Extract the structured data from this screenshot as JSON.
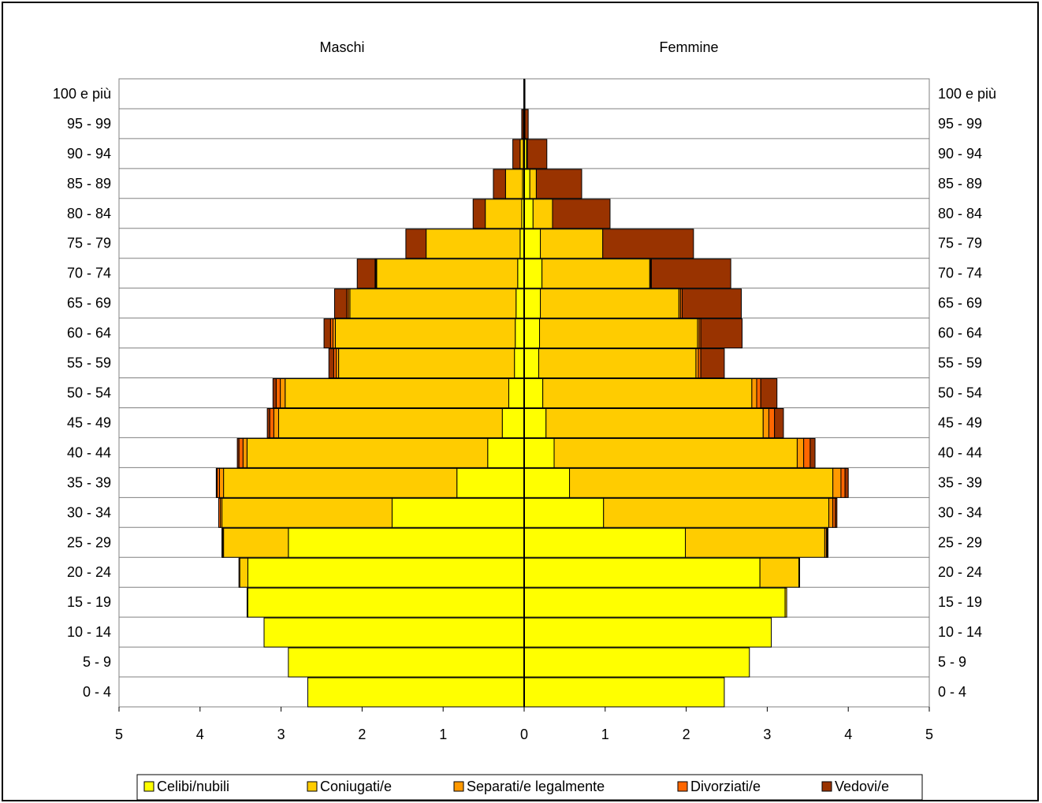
{
  "chart_data": {
    "type": "bar",
    "orientation": "horizontal-population-pyramid",
    "left_title": "Maschi",
    "right_title": "Femmine",
    "xlim": [
      -5,
      5
    ],
    "x_ticks": [
      "5",
      "4",
      "3",
      "2",
      "1",
      "0",
      "1",
      "2",
      "3",
      "4",
      "5"
    ],
    "grid": "horizontal lines between age classes",
    "legend_position": "bottom",
    "categories": [
      "0 - 4",
      "5 - 9",
      "10 - 14",
      "15 - 19",
      "20 - 24",
      "25 - 29",
      "30 - 34",
      "35 - 39",
      "40 - 44",
      "45 - 49",
      "50 - 54",
      "55 - 59",
      "60 - 64",
      "65 - 69",
      "70 - 74",
      "75 - 79",
      "80 - 84",
      "85 - 89",
      "90 - 94",
      "95 - 99",
      "100 e più"
    ],
    "series": [
      {
        "name": "Celibi/nubili",
        "color": "#FFFF00",
        "males": [
          2.67,
          2.91,
          3.21,
          3.41,
          3.41,
          2.91,
          1.63,
          0.83,
          0.45,
          0.27,
          0.19,
          0.12,
          0.11,
          0.1,
          0.08,
          0.05,
          0.03,
          0.02,
          0.01,
          0.0,
          0.0
        ],
        "females": [
          2.47,
          2.78,
          3.05,
          3.22,
          2.91,
          1.99,
          0.98,
          0.56,
          0.37,
          0.27,
          0.23,
          0.18,
          0.19,
          0.2,
          0.22,
          0.2,
          0.11,
          0.07,
          0.03,
          0.01,
          0.0
        ]
      },
      {
        "name": "Coniugati/e",
        "color": "#FFCC00",
        "males": [
          0.0,
          0.0,
          0.0,
          0.01,
          0.1,
          0.8,
          2.1,
          2.88,
          2.97,
          2.76,
          2.76,
          2.17,
          2.22,
          2.05,
          1.74,
          1.16,
          0.45,
          0.21,
          0.04,
          0.01,
          0.0
        ],
        "females": [
          0.0,
          0.0,
          0.0,
          0.02,
          0.48,
          1.72,
          2.78,
          3.25,
          3.0,
          2.68,
          2.58,
          1.94,
          1.95,
          1.71,
          1.33,
          0.77,
          0.24,
          0.08,
          0.01,
          0.0,
          0.0
        ]
      },
      {
        "name": "Separati/e legalmente",
        "color": "#FF9900",
        "males": [
          0.0,
          0.0,
          0.0,
          0.0,
          0.01,
          0.01,
          0.02,
          0.05,
          0.05,
          0.06,
          0.06,
          0.03,
          0.03,
          0.02,
          0.01,
          0.0,
          0.0,
          0.0,
          0.0,
          0.0,
          0.0
        ],
        "females": [
          0.0,
          0.0,
          0.0,
          0.0,
          0.01,
          0.02,
          0.05,
          0.1,
          0.08,
          0.07,
          0.06,
          0.03,
          0.02,
          0.02,
          0.01,
          0.0,
          0.0,
          0.0,
          0.0,
          0.0,
          0.0
        ]
      },
      {
        "name": "Divorziati/e",
        "color": "#FF6600",
        "males": [
          0.0,
          0.0,
          0.0,
          0.0,
          0.0,
          0.01,
          0.02,
          0.03,
          0.05,
          0.05,
          0.05,
          0.03,
          0.03,
          0.02,
          0.01,
          0.0,
          0.0,
          0.0,
          0.0,
          0.0,
          0.0
        ],
        "females": [
          0.0,
          0.0,
          0.0,
          0.0,
          0.0,
          0.01,
          0.03,
          0.05,
          0.08,
          0.07,
          0.05,
          0.03,
          0.02,
          0.02,
          0.01,
          0.0,
          0.0,
          0.0,
          0.0,
          0.0,
          0.0
        ]
      },
      {
        "name": "Vedovi/e",
        "color": "#993300",
        "males": [
          0.0,
          0.0,
          0.0,
          0.0,
          0.0,
          0.0,
          0.0,
          0.01,
          0.02,
          0.03,
          0.04,
          0.06,
          0.08,
          0.15,
          0.22,
          0.25,
          0.15,
          0.15,
          0.09,
          0.02,
          0.0
        ],
        "females": [
          0.0,
          0.0,
          0.0,
          0.0,
          0.0,
          0.01,
          0.02,
          0.04,
          0.06,
          0.11,
          0.2,
          0.29,
          0.51,
          0.73,
          0.98,
          1.12,
          0.71,
          0.56,
          0.24,
          0.04,
          0.01
        ]
      }
    ]
  }
}
